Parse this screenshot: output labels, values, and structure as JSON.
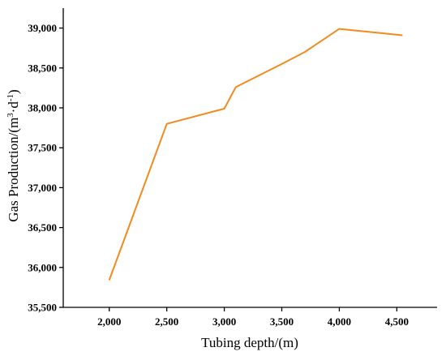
{
  "chart_data": {
    "type": "line",
    "x": [
      2000,
      2500,
      3000,
      3100,
      3500,
      3700,
      4000,
      4550
    ],
    "series": [
      {
        "values": [
          35840,
          37800,
          37990,
          38260,
          38550,
          38700,
          38990,
          38910
        ],
        "color": "#F28A1E"
      }
    ],
    "xlabel": "Tubing depth/(m)",
    "ylabel": {
      "prefix": "Gas Production/(m",
      "sup1": "3",
      "mid": "·d",
      "sup2": "-1",
      "suffix": ")"
    },
    "xlim": [
      1600,
      4850
    ],
    "ylim": [
      35500,
      39250
    ],
    "xticks": [
      {
        "value": 2000,
        "label": "2,000"
      },
      {
        "value": 2500,
        "label": "2,500"
      },
      {
        "value": 3000,
        "label": "3,000"
      },
      {
        "value": 3500,
        "label": "3,500"
      },
      {
        "value": 4000,
        "label": "4,000"
      },
      {
        "value": 4500,
        "label": "4,500"
      }
    ],
    "yticks": [
      {
        "value": 35500,
        "label": "35,500"
      },
      {
        "value": 36000,
        "label": "36,000"
      },
      {
        "value": 36500,
        "label": "36,500"
      },
      {
        "value": 37000,
        "label": "37,000"
      },
      {
        "value": 37500,
        "label": "37,500"
      },
      {
        "value": 38000,
        "label": "38,000"
      },
      {
        "value": 38500,
        "label": "38,500"
      },
      {
        "value": 39000,
        "label": "39,000"
      }
    ],
    "grid": false,
    "legend": "none"
  }
}
